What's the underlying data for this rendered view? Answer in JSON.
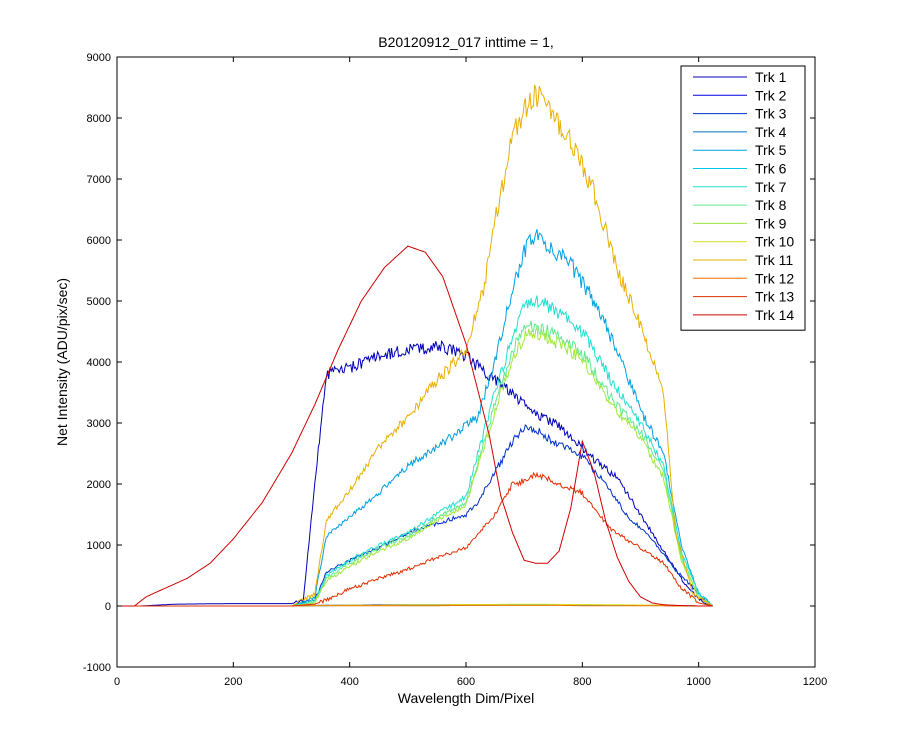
{
  "chart_data": {
    "type": "line",
    "title": "B20120912_017 inttime = 1,",
    "xlabel": "Wavelength Dim/Pixel",
    "ylabel": "Net Intensity (ADU/pix/sec)",
    "xlim": [
      0,
      1200
    ],
    "ylim": [
      -1000,
      9000
    ],
    "xticks": [
      0,
      200,
      400,
      600,
      800,
      1000,
      1200
    ],
    "yticks": [
      -1000,
      0,
      1000,
      2000,
      3000,
      4000,
      5000,
      6000,
      7000,
      8000,
      9000
    ],
    "grid": false,
    "legend_position": "top-right",
    "series": [
      {
        "name": "Trk 1",
        "color": "#0000b8",
        "x": [
          0,
          40,
          100,
          200,
          300,
          320,
          340,
          360,
          380,
          400,
          450,
          500,
          550,
          580,
          600,
          630,
          660,
          700,
          720,
          760,
          790,
          820,
          860,
          900,
          940,
          980,
          1010,
          1025
        ],
        "y": [
          0,
          0,
          30,
          40,
          40,
          80,
          2000,
          3800,
          3850,
          3900,
          4100,
          4200,
          4250,
          4200,
          4100,
          3850,
          3650,
          3300,
          3150,
          2950,
          2700,
          2400,
          2100,
          1500,
          900,
          300,
          50,
          0
        ]
      },
      {
        "name": "Trk 2",
        "color": "#0000e6",
        "x": [
          0,
          50,
          100,
          200,
          300,
          350,
          400,
          450,
          500,
          560,
          600,
          610,
          650,
          700,
          720,
          760,
          800,
          830,
          860,
          920,
          960,
          1000,
          1025
        ],
        "y": [
          0,
          0,
          0,
          0,
          0,
          10,
          15,
          20,
          20,
          20,
          20,
          20,
          25,
          25,
          25,
          20,
          20,
          15,
          10,
          10,
          5,
          0,
          0
        ]
      },
      {
        "name": "Trk 3",
        "color": "#0030c8",
        "x": [
          0,
          100,
          200,
          300,
          340,
          360,
          400,
          450,
          500,
          550,
          600,
          620,
          650,
          680,
          700,
          720,
          750,
          800,
          840,
          880,
          920,
          960,
          1000,
          1025
        ],
        "y": [
          0,
          0,
          0,
          0,
          100,
          550,
          750,
          950,
          1200,
          1350,
          1500,
          1700,
          2200,
          2700,
          2950,
          2900,
          2700,
          2450,
          2000,
          1450,
          1100,
          600,
          200,
          0
        ]
      },
      {
        "name": "Trk 4",
        "color": "#0070c0",
        "x": [
          0,
          200,
          300,
          340,
          360,
          400,
          450,
          500,
          550,
          600,
          650,
          700,
          720,
          760,
          800,
          860,
          920,
          960,
          1000,
          1025
        ],
        "y": [
          0,
          0,
          0,
          10,
          10,
          10,
          10,
          15,
          15,
          15,
          15,
          20,
          20,
          20,
          15,
          15,
          10,
          5,
          0,
          0
        ]
      },
      {
        "name": "Trk 5",
        "color": "#00a0e0",
        "x": [
          0,
          200,
          300,
          340,
          360,
          400,
          450,
          500,
          550,
          600,
          620,
          650,
          680,
          700,
          720,
          740,
          780,
          820,
          860,
          900,
          940,
          970,
          1000,
          1025
        ],
        "y": [
          0,
          0,
          0,
          150,
          1150,
          1450,
          1850,
          2300,
          2600,
          2950,
          3100,
          4000,
          5200,
          5800,
          6100,
          5900,
          5600,
          5000,
          4200,
          3200,
          2500,
          1000,
          200,
          0
        ]
      },
      {
        "name": "Trk 6",
        "color": "#00c8e8",
        "x": [
          0,
          200,
          300,
          340,
          360,
          400,
          450,
          500,
          550,
          600,
          650,
          700,
          720,
          760,
          800,
          860,
          920,
          960,
          1000,
          1025
        ],
        "y": [
          0,
          0,
          0,
          5,
          5,
          10,
          10,
          10,
          15,
          15,
          15,
          20,
          20,
          20,
          15,
          15,
          10,
          5,
          0,
          0
        ]
      },
      {
        "name": "Trk 7",
        "color": "#20e0d0",
        "x": [
          0,
          200,
          300,
          340,
          360,
          400,
          450,
          500,
          550,
          600,
          650,
          680,
          700,
          720,
          760,
          800,
          850,
          900,
          940,
          970,
          1000,
          1025
        ],
        "y": [
          0,
          0,
          0,
          80,
          500,
          750,
          1000,
          1200,
          1500,
          1800,
          3500,
          4400,
          4900,
          5050,
          4800,
          4500,
          3700,
          3000,
          2300,
          900,
          200,
          0
        ]
      },
      {
        "name": "Trk 8",
        "color": "#60e890",
        "x": [
          0,
          200,
          300,
          340,
          360,
          400,
          450,
          500,
          550,
          600,
          650,
          680,
          700,
          720,
          760,
          800,
          850,
          900,
          940,
          970,
          1000,
          1025
        ],
        "y": [
          0,
          0,
          0,
          60,
          450,
          700,
          950,
          1150,
          1450,
          1700,
          3300,
          4200,
          4550,
          4600,
          4400,
          4150,
          3400,
          2850,
          2200,
          800,
          150,
          0
        ]
      },
      {
        "name": "Trk 9",
        "color": "#a0e840",
        "x": [
          0,
          200,
          300,
          340,
          360,
          400,
          450,
          500,
          550,
          600,
          650,
          680,
          700,
          720,
          760,
          800,
          850,
          900,
          940,
          970,
          1000,
          1025
        ],
        "y": [
          0,
          0,
          0,
          50,
          400,
          650,
          900,
          1100,
          1400,
          1650,
          3200,
          4050,
          4400,
          4500,
          4300,
          4050,
          3300,
          2750,
          2100,
          750,
          150,
          0
        ]
      },
      {
        "name": "Trk 10",
        "color": "#d8e020",
        "x": [
          0,
          200,
          300,
          340,
          360,
          400,
          450,
          500,
          550,
          600,
          650,
          700,
          720,
          760,
          800,
          860,
          920,
          960,
          1000,
          1025
        ],
        "y": [
          0,
          0,
          0,
          10,
          10,
          15,
          15,
          20,
          20,
          25,
          25,
          30,
          30,
          25,
          25,
          20,
          15,
          10,
          0,
          0
        ]
      },
      {
        "name": "Trk 11",
        "color": "#e8b000",
        "x": [
          0,
          200,
          300,
          340,
          360,
          400,
          450,
          500,
          550,
          600,
          630,
          650,
          680,
          700,
          720,
          740,
          780,
          820,
          860,
          900,
          940,
          960,
          990,
          1025
        ],
        "y": [
          0,
          0,
          0,
          200,
          1400,
          1900,
          2600,
          3100,
          3700,
          4200,
          5200,
          6300,
          7700,
          8100,
          8400,
          8250,
          7600,
          6800,
          5500,
          4600,
          3500,
          1200,
          200,
          0
        ]
      },
      {
        "name": "Trk 12",
        "color": "#f07000",
        "x": [
          0,
          200,
          300,
          340,
          360,
          400,
          450,
          500,
          550,
          600,
          650,
          700,
          720,
          760,
          800,
          860,
          920,
          960,
          1000,
          1025
        ],
        "y": [
          0,
          0,
          0,
          5,
          5,
          5,
          5,
          5,
          5,
          10,
          10,
          10,
          10,
          10,
          5,
          5,
          5,
          0,
          0,
          0
        ]
      },
      {
        "name": "Trk 13",
        "color": "#e03000",
        "x": [
          0,
          200,
          300,
          340,
          360,
          400,
          450,
          500,
          550,
          600,
          650,
          680,
          700,
          720,
          760,
          800,
          850,
          900,
          940,
          970,
          1000,
          1025
        ],
        "y": [
          0,
          0,
          0,
          30,
          100,
          280,
          450,
          600,
          800,
          950,
          1500,
          2000,
          2050,
          2150,
          2000,
          1850,
          1250,
          950,
          700,
          300,
          50,
          0
        ]
      },
      {
        "name": "Trk 14",
        "color": "#d00000",
        "x": [
          0,
          30,
          50,
          80,
          120,
          160,
          200,
          250,
          300,
          340,
          380,
          420,
          460,
          500,
          530,
          560,
          600,
          640,
          660,
          680,
          700,
          720,
          740,
          760,
          780,
          800,
          820,
          840,
          860,
          880,
          900,
          920,
          940,
          960,
          1000,
          1025
        ],
        "y": [
          0,
          0,
          150,
          280,
          450,
          700,
          1100,
          1700,
          2500,
          3300,
          4200,
          5000,
          5550,
          5900,
          5800,
          5400,
          4300,
          2800,
          1800,
          1200,
          750,
          700,
          700,
          900,
          1600,
          2700,
          2200,
          1400,
          800,
          400,
          150,
          50,
          20,
          10,
          0,
          0
        ]
      }
    ]
  }
}
